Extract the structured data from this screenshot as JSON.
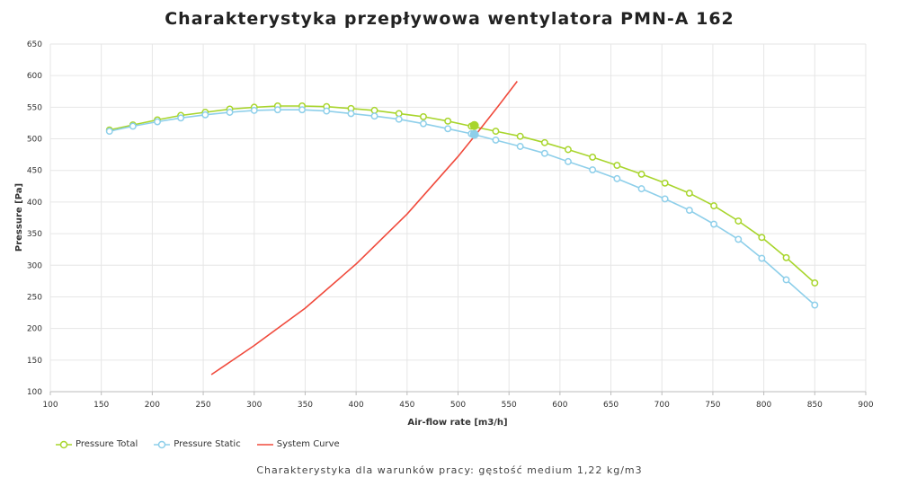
{
  "chart_data": {
    "type": "line",
    "title": "Charakterystyka przepływowa wentylatora PMN-A 162",
    "xlabel": "Air-flow rate [m3/h]",
    "ylabel": "Pressure [Pa]",
    "xlim": [
      100,
      900
    ],
    "ylim": [
      100,
      650
    ],
    "xticks": [
      100,
      150,
      200,
      250,
      300,
      350,
      400,
      450,
      500,
      550,
      600,
      650,
      700,
      750,
      800,
      850,
      900
    ],
    "yticks": [
      100,
      150,
      200,
      250,
      300,
      350,
      400,
      450,
      500,
      550,
      600,
      650
    ],
    "grid": true,
    "legend_position": "bottom-left",
    "series": [
      {
        "name": "Pressure Total",
        "color": "#a8d52c",
        "marker": "hollow-circle",
        "x": [
          158,
          181,
          205,
          228,
          252,
          276,
          300,
          323,
          347,
          371,
          395,
          418,
          442,
          466,
          490,
          513,
          537,
          561,
          585,
          608,
          632,
          656,
          680,
          703,
          727,
          751,
          775,
          798,
          822,
          850
        ],
        "y": [
          514,
          522,
          530,
          537,
          542,
          547,
          550,
          552,
          552,
          551,
          548,
          545,
          540,
          535,
          528,
          520,
          512,
          504,
          494,
          483,
          471,
          458,
          444,
          430,
          414,
          394,
          370,
          344,
          312,
          272
        ]
      },
      {
        "name": "Pressure Static",
        "color": "#8ecfea",
        "marker": "hollow-circle",
        "x": [
          158,
          181,
          205,
          228,
          252,
          276,
          300,
          323,
          347,
          371,
          395,
          418,
          442,
          466,
          490,
          513,
          537,
          561,
          585,
          608,
          632,
          656,
          680,
          703,
          727,
          751,
          775,
          798,
          822,
          850
        ],
        "y": [
          512,
          520,
          527,
          533,
          538,
          542,
          545,
          546,
          546,
          544,
          540,
          536,
          531,
          524,
          516,
          508,
          498,
          488,
          477,
          464,
          451,
          437,
          421,
          405,
          387,
          365,
          341,
          311,
          277,
          237
        ]
      },
      {
        "name": "System Curve",
        "color": "#f04a3c",
        "marker": "none",
        "x": [
          258,
          300,
          350,
          400,
          450,
          500,
          520,
          540,
          558
        ],
        "y": [
          127,
          173,
          232,
          302,
          381,
          472,
          512,
          553,
          591
        ]
      }
    ],
    "operating_points": [
      {
        "series": "Pressure Total",
        "x": 516,
        "y": 521,
        "color": "#a8d52c"
      },
      {
        "series": "Pressure Static",
        "x": 516,
        "y": 507,
        "color": "#8ecfea"
      }
    ],
    "footnote": "Charakterystyka dla warunków pracy: gęstość medium 1,22 kg/m3"
  }
}
